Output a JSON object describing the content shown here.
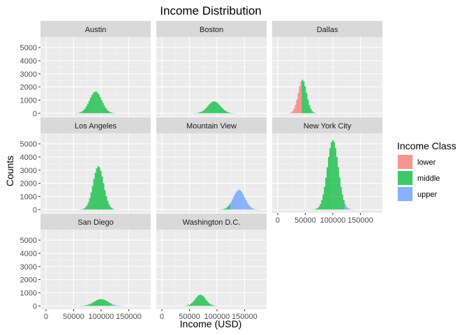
{
  "chart_data": {
    "type": "bar",
    "subtype": "faceted-histogram",
    "title": "Income Distribution",
    "xlabel": "Income (USD)",
    "ylabel": "Counts",
    "xlim": [
      -10000,
      190000
    ],
    "ylim": [
      -250,
      5800
    ],
    "x_ticks": [
      0,
      50000,
      100000,
      150000
    ],
    "x_tick_labels": [
      "0",
      "50000",
      "100000",
      "150000"
    ],
    "y_ticks": [
      0,
      1000,
      2000,
      3000,
      4000,
      5000
    ],
    "y_tick_labels": [
      "0",
      "1000",
      "2000",
      "3000",
      "4000",
      "5000"
    ],
    "grid": true,
    "legend": {
      "title": "Income Class",
      "position": "right",
      "entries": [
        {
          "label": "lower",
          "color": "#F8766D"
        },
        {
          "label": "middle",
          "color": "#00BA38"
        },
        {
          "label": "upper",
          "color": "#619CFF"
        }
      ]
    },
    "bin_width": 2500,
    "panels": [
      {
        "name": "Austin",
        "mean": 90000,
        "sd": 11000,
        "peak": 1650,
        "lower_max": 0,
        "upper_min": 170000
      },
      {
        "name": "Boston",
        "mean": 95000,
        "sd": 11500,
        "peak": 900,
        "lower_max": 0,
        "upper_min": 180000
      },
      {
        "name": "Dallas",
        "mean": 45000,
        "sd": 7500,
        "peak": 2550,
        "lower_max": 45000,
        "upper_min": 180000
      },
      {
        "name": "Los Angeles",
        "mean": 95000,
        "sd": 9500,
        "peak": 3300,
        "lower_max": 0,
        "upper_min": 120000
      },
      {
        "name": "Mountain View",
        "mean": 140000,
        "sd": 10500,
        "peak": 1500,
        "lower_max": 0,
        "upper_min": 125000
      },
      {
        "name": "New York City",
        "mean": 100000,
        "sd": 10000,
        "peak": 5300,
        "lower_max": 0,
        "upper_min": 122000
      },
      {
        "name": "San Diego",
        "mean": 100000,
        "sd": 12500,
        "peak": 520,
        "lower_max": 0,
        "upper_min": 118000
      },
      {
        "name": "Washington D.C.",
        "mean": 70000,
        "sd": 9500,
        "peak": 850,
        "lower_max": 0,
        "upper_min": 180000
      }
    ]
  }
}
